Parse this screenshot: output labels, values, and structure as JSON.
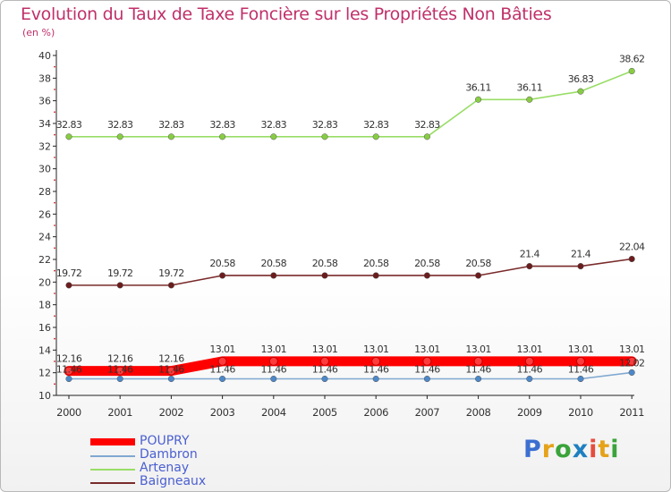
{
  "title": "Evolution du Taux de Taxe Foncière sur les Propriétés Non Bâties",
  "unit_label": "(en %)",
  "brand": {
    "letters": [
      "P",
      "r",
      "o",
      "x",
      "i",
      "t",
      "i"
    ],
    "colors": [
      "#3b6fd0",
      "#e5a21a",
      "#3aa33a",
      "#1f7fc0",
      "#e74c3c",
      "#e5a21a",
      "#3aa33a"
    ]
  },
  "chart_data": {
    "type": "line",
    "title": "Evolution du Taux de Taxe Foncière sur les Propriétés Non Bâties",
    "ylabel": "(en %)",
    "xlabel": "",
    "ylim": [
      10,
      40
    ],
    "yticks": [
      10,
      12,
      14,
      16,
      18,
      20,
      22,
      24,
      26,
      28,
      30,
      32,
      34,
      36,
      38,
      40
    ],
    "categories": [
      "2000",
      "2001",
      "2002",
      "2003",
      "2004",
      "2005",
      "2006",
      "2007",
      "2008",
      "2009",
      "2010",
      "2011"
    ],
    "grid": false,
    "series": [
      {
        "name": "Artenay",
        "color": "#99dd66",
        "marker": "#88cc44",
        "values": [
          32.83,
          32.83,
          32.83,
          32.83,
          32.83,
          32.83,
          32.83,
          32.83,
          36.11,
          36.11,
          36.83,
          38.62
        ],
        "labels": [
          "32.83",
          "32.83",
          "32.83",
          "32.83",
          "32.83",
          "32.83",
          "32.83",
          "32.83",
          "36.11",
          "36.11",
          "36.83",
          "38.62"
        ]
      },
      {
        "name": "Baigneaux",
        "color": "#7a2a2a",
        "marker": "#6b1d1d",
        "values": [
          19.72,
          19.72,
          19.72,
          20.58,
          20.58,
          20.58,
          20.58,
          20.58,
          20.58,
          21.4,
          21.4,
          22.04
        ],
        "labels": [
          "19.72",
          "19.72",
          "19.72",
          "20.58",
          "20.58",
          "20.58",
          "20.58",
          "20.58",
          "20.58",
          "21.4",
          "21.4",
          "22.04"
        ]
      },
      {
        "name": "Dambron",
        "color": "#80a8d0",
        "marker": "#4d88c8",
        "values": [
          11.46,
          11.46,
          11.46,
          11.46,
          11.46,
          11.46,
          11.46,
          11.46,
          11.46,
          11.46,
          11.46,
          12.02
        ],
        "labels": [
          "11.46",
          "11.46",
          "11.46",
          "11.46",
          "11.46",
          "11.46",
          "11.46",
          "11.46",
          "11.46",
          "11.46",
          "11.46",
          "12.02"
        ]
      },
      {
        "name": "POUPRY",
        "color": "#ff0000",
        "marker": "#d01010",
        "values": [
          12.16,
          12.16,
          12.16,
          13.01,
          13.01,
          13.01,
          13.01,
          13.01,
          13.01,
          13.01,
          13.01,
          13.01
        ],
        "labels": [
          "12.16",
          "12.16",
          "12.16",
          "13.01",
          "13.01",
          "13.01",
          "13.01",
          "13.01",
          "13.01",
          "13.01",
          "13.01",
          "13.01"
        ]
      }
    ],
    "legend": [
      {
        "name": "POUPRY",
        "color": "#ff0000",
        "thick": true
      },
      {
        "name": "Dambron",
        "color": "#80a8d0",
        "thick": false
      },
      {
        "name": "Artenay",
        "color": "#99dd66",
        "thick": false
      },
      {
        "name": "Baigneaux",
        "color": "#7a2a2a",
        "thick": false
      }
    ],
    "legend_position": "bottom-left"
  }
}
